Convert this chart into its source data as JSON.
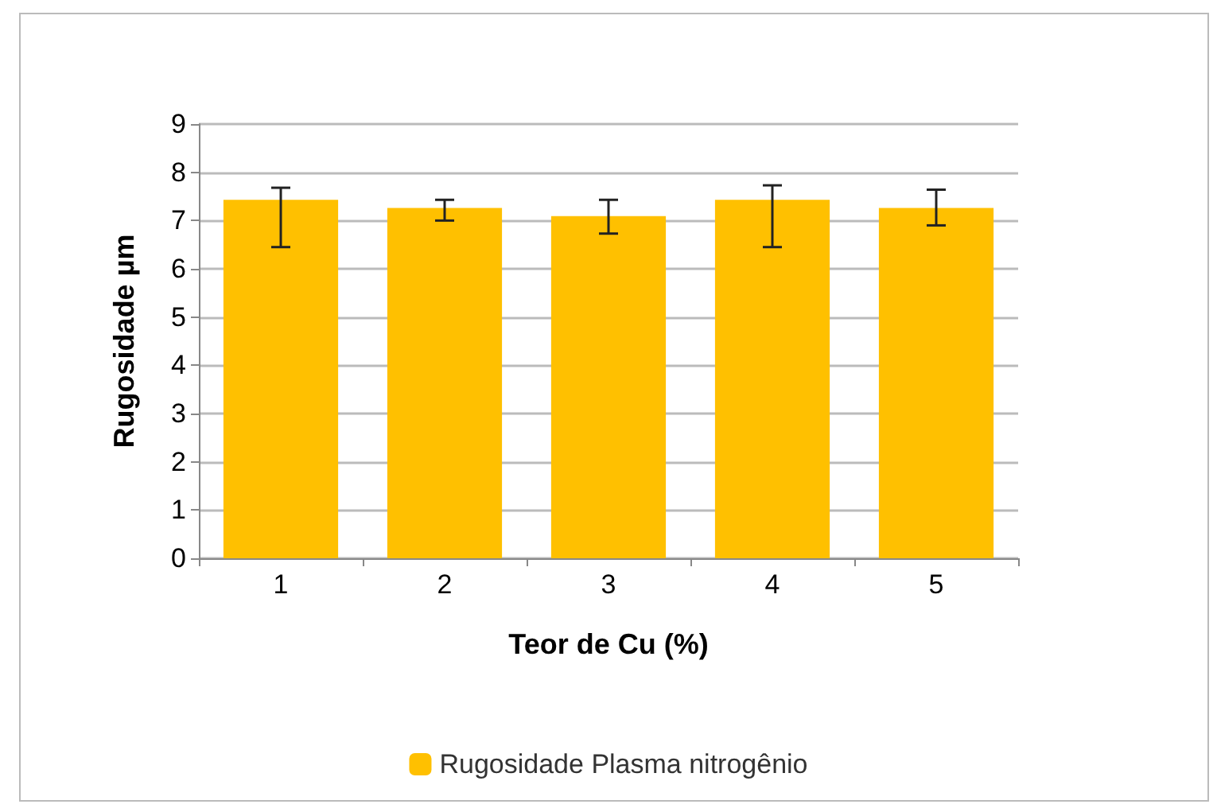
{
  "chart_data": {
    "type": "bar",
    "xlabel": "Teor de Cu (%)",
    "ylabel": "Rugosidade µm",
    "categories": [
      "1",
      "2",
      "3",
      "4",
      "5"
    ],
    "series": [
      {
        "name": "Rugosidade Plasma nitrogênio",
        "color": "#ffc000",
        "values": [
          7.43,
          7.26,
          7.09,
          7.43,
          7.26
        ],
        "errors": [
          [
            6.45,
            7.68
          ],
          [
            7.0,
            7.43
          ],
          [
            6.73,
            7.43
          ],
          [
            6.45,
            7.73
          ],
          [
            6.9,
            7.64
          ]
        ]
      }
    ],
    "ylim": [
      0,
      9
    ],
    "yticks": [
      0,
      1,
      2,
      3,
      4,
      5,
      6,
      7,
      8,
      9
    ],
    "grid": "y",
    "legend": "bottom"
  }
}
